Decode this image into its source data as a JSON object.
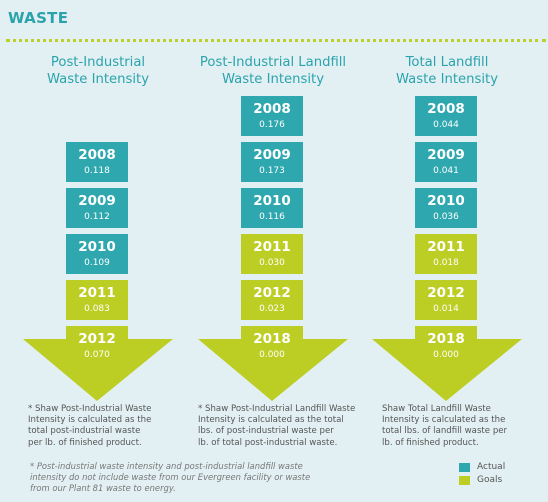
{
  "title": "WASTE",
  "columns": [
    {
      "title_line1": "Post-Industrial",
      "title_line2": "Waste Intensity",
      "boxes": [
        {
          "year": "2008",
          "value": "0.118",
          "type": "actual"
        },
        {
          "year": "2009",
          "value": "0.112",
          "type": "actual"
        },
        {
          "year": "2010",
          "value": "0.109",
          "type": "actual"
        },
        {
          "year": "2011",
          "value": "0.083",
          "type": "goal"
        }
      ],
      "arrow": {
        "year": "2012",
        "value": "0.070",
        "type": "goal"
      },
      "note": "* Shaw Post-Industrial Waste\nIntensity is calculated as the\ntotal post-industrial waste\nper lb. of finished product."
    },
    {
      "title_line1": "Post-Industrial Landfill",
      "title_line2": "Waste Intensity",
      "boxes": [
        {
          "year": "2008",
          "value": "0.176",
          "type": "actual"
        },
        {
          "year": "2009",
          "value": "0.173",
          "type": "actual"
        },
        {
          "year": "2010",
          "value": "0.116",
          "type": "actual"
        },
        {
          "year": "2011",
          "value": "0.030",
          "type": "goal"
        },
        {
          "year": "2012",
          "value": "0.023",
          "type": "goal"
        }
      ],
      "arrow": {
        "year": "2018",
        "value": "0.000",
        "type": "goal"
      },
      "note": "* Shaw Post-Industrial Landfill Waste\nIntensity is calculated as the total\nlbs. of post-industrial waste per\nlb. of total post-industrial waste."
    },
    {
      "title_line1": "Total Landfill",
      "title_line2": "Waste Intensity",
      "boxes": [
        {
          "year": "2008",
          "value": "0.044",
          "type": "actual"
        },
        {
          "year": "2009",
          "value": "0.041",
          "type": "actual"
        },
        {
          "year": "2010",
          "value": "0.036",
          "type": "actual"
        },
        {
          "year": "2011",
          "value": "0.018",
          "type": "goal"
        },
        {
          "year": "2012",
          "value": "0.014",
          "type": "goal"
        }
      ],
      "arrow": {
        "year": "2018",
        "value": "0.000",
        "type": "goal"
      },
      "note": "Shaw Total Landfill Waste\nIntensity is calculated as the\ntotal lbs. of landfill waste per\nlb. of finished product."
    }
  ],
  "footnote": "* Post-industrial waste intensity and post-industrial landfill waste\nintensity do not include waste from our Evergreen facility or waste\nfrom our Plant 81 waste to energy.",
  "legend": [
    {
      "label": "Actual",
      "color": "#2ea7ae"
    },
    {
      "label": "Goals",
      "color": "#bccd24"
    }
  ],
  "colors": {
    "actual": "#2ea7ae",
    "goal": "#bccd24",
    "heading": "#2aa3ac",
    "background": "#e3f0f3"
  }
}
